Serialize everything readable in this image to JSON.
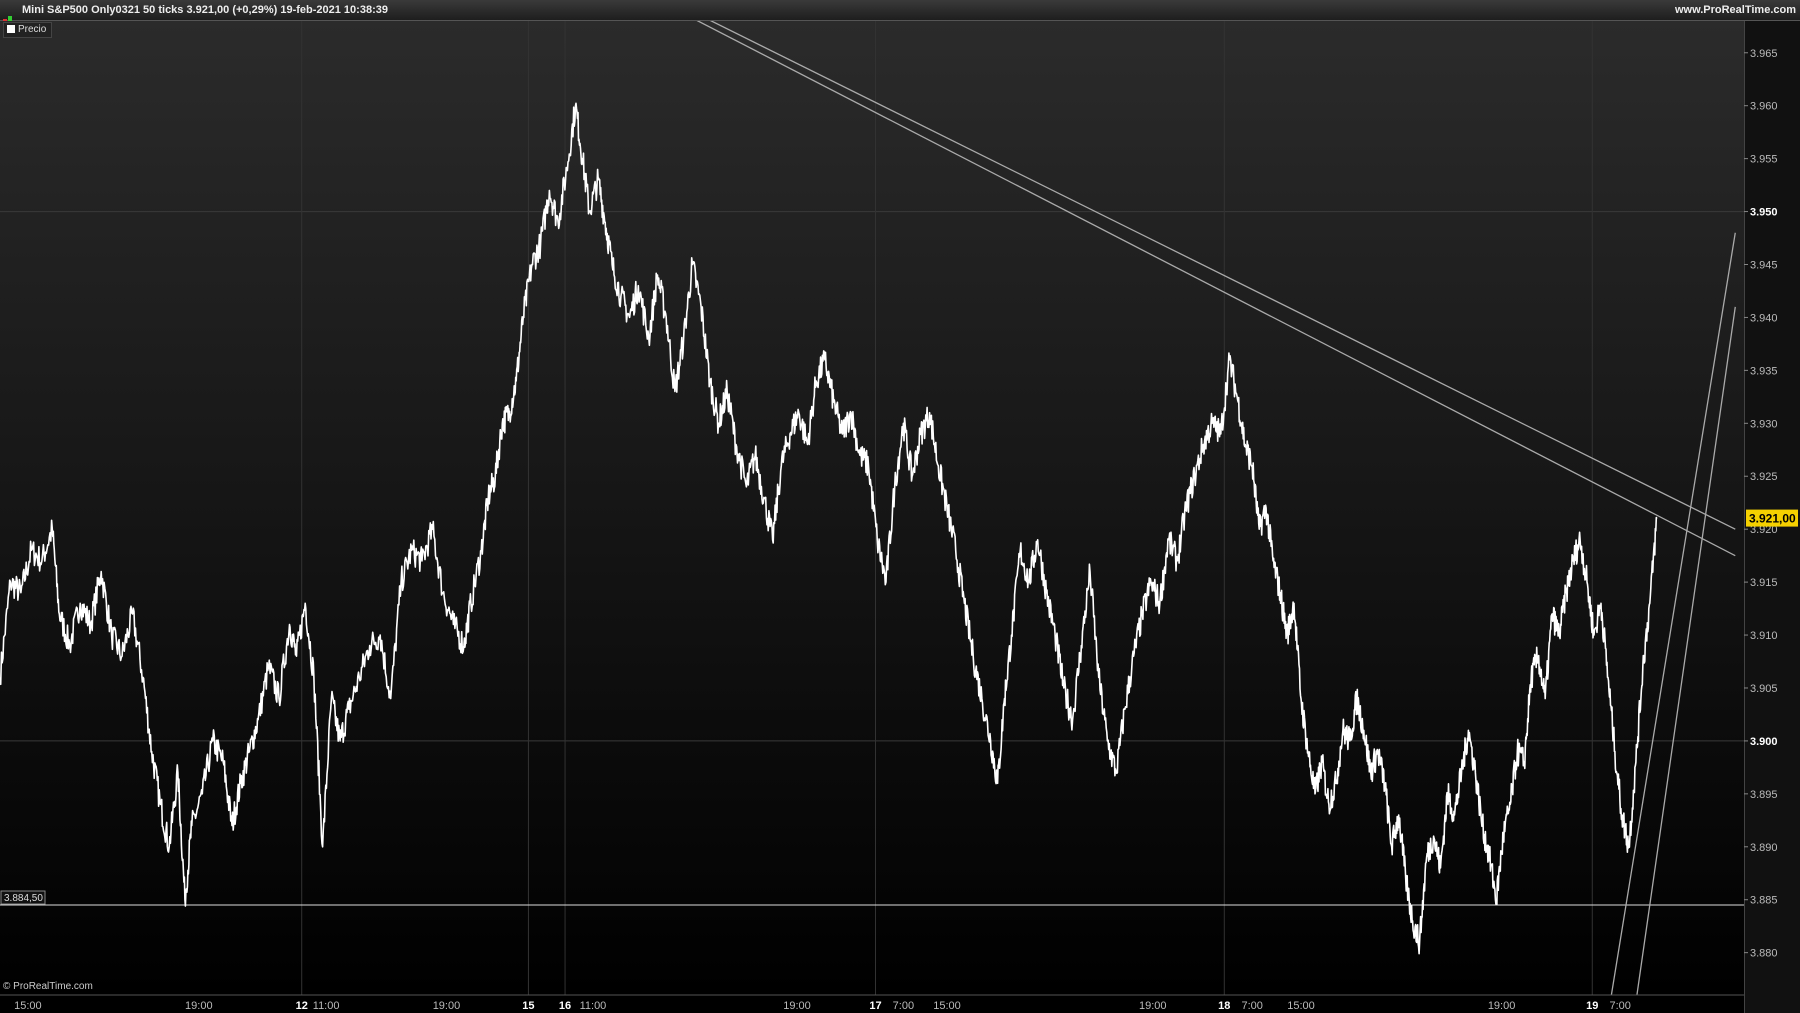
{
  "window": {
    "title": "Mini S&P500 Only0321 50 ticks 3.921,00 (+0,29%) 19-feb-2021 10:38:39",
    "site": "www.ProRealTime.com",
    "legend_label": "Precio",
    "copyright": "© ProRealTime.com"
  },
  "colors": {
    "background_top": "#2a2a2a",
    "background_bottom": "#000000",
    "price_line": "#ffffff",
    "current_price_badge": "#f5d000",
    "trendline": "#aaaaaa"
  },
  "chart_data": {
    "type": "line",
    "instrument": "Mini S&P500 Only0321",
    "current_price": "3.921,00",
    "horizontal_line_label": "3.884,50",
    "horizontal_line_value": 3884.5,
    "ylim": [
      3876,
      3968
    ],
    "y_ticks": [
      {
        "value": 3965,
        "label": "3.965",
        "bold": false
      },
      {
        "value": 3960,
        "label": "3.960",
        "bold": false
      },
      {
        "value": 3955,
        "label": "3.955",
        "bold": false
      },
      {
        "value": 3950,
        "label": "3.950",
        "bold": true
      },
      {
        "value": 3945,
        "label": "3.945",
        "bold": false
      },
      {
        "value": 3940,
        "label": "3.940",
        "bold": false
      },
      {
        "value": 3935,
        "label": "3.935",
        "bold": false
      },
      {
        "value": 3930,
        "label": "3.930",
        "bold": false
      },
      {
        "value": 3925,
        "label": "3.925",
        "bold": false
      },
      {
        "value": 3920,
        "label": "3.920",
        "bold": false
      },
      {
        "value": 3915,
        "label": "3.915",
        "bold": false
      },
      {
        "value": 3910,
        "label": "3.910",
        "bold": false
      },
      {
        "value": 3905,
        "label": "3.905",
        "bold": false
      },
      {
        "value": 3900,
        "label": "3.900",
        "bold": true
      },
      {
        "value": 3895,
        "label": "3.895",
        "bold": false
      },
      {
        "value": 3890,
        "label": "3.890",
        "bold": false
      },
      {
        "value": 3885,
        "label": "3.885",
        "bold": false
      },
      {
        "value": 3880,
        "label": "3.880",
        "bold": false
      }
    ],
    "x_range": [
      0,
      1000
    ],
    "x_ticks": [
      {
        "x": 16,
        "label": "15:00",
        "bold": false
      },
      {
        "x": 114,
        "label": "19:00",
        "bold": false
      },
      {
        "x": 173,
        "label": "12",
        "bold": true
      },
      {
        "x": 187,
        "label": "11:00",
        "bold": false
      },
      {
        "x": 256,
        "label": "19:00",
        "bold": false
      },
      {
        "x": 303,
        "label": "15",
        "bold": true
      },
      {
        "x": 324,
        "label": "16",
        "bold": true
      },
      {
        "x": 340,
        "label": "11:00",
        "bold": false
      },
      {
        "x": 457,
        "label": "19:00",
        "bold": false
      },
      {
        "x": 502,
        "label": "17",
        "bold": true
      },
      {
        "x": 518,
        "label": "7:00",
        "bold": false
      },
      {
        "x": 543,
        "label": "15:00",
        "bold": false
      },
      {
        "x": 661,
        "label": "19:00",
        "bold": false
      },
      {
        "x": 702,
        "label": "18",
        "bold": true
      },
      {
        "x": 718,
        "label": "7:00",
        "bold": false
      },
      {
        "x": 746,
        "label": "15:00",
        "bold": false
      },
      {
        "x": 861,
        "label": "19:00",
        "bold": false
      },
      {
        "x": 913,
        "label": "19",
        "bold": true
      },
      {
        "x": 929,
        "label": "7:00",
        "bold": false
      }
    ],
    "day_separators": [
      173,
      303,
      324,
      502,
      702,
      913
    ],
    "series": [
      {
        "points": [
          [
            0,
            3906
          ],
          [
            6,
            3915
          ],
          [
            12,
            3914
          ],
          [
            18,
            3918
          ],
          [
            24,
            3917
          ],
          [
            30,
            3920
          ],
          [
            34,
            3912
          ],
          [
            40,
            3909
          ],
          [
            46,
            3913
          ],
          [
            52,
            3911
          ],
          [
            58,
            3916
          ],
          [
            64,
            3910
          ],
          [
            70,
            3908
          ],
          [
            76,
            3912
          ],
          [
            82,
            3906
          ],
          [
            87,
            3899
          ],
          [
            92,
            3894
          ],
          [
            97,
            3890
          ],
          [
            102,
            3897
          ],
          [
            106,
            3885
          ],
          [
            110,
            3892
          ],
          [
            116,
            3895
          ],
          [
            122,
            3900
          ],
          [
            128,
            3898
          ],
          [
            133,
            3892
          ],
          [
            138,
            3896
          ],
          [
            143,
            3899
          ],
          [
            148,
            3902
          ],
          [
            154,
            3907
          ],
          [
            160,
            3904
          ],
          [
            166,
            3911
          ],
          [
            170,
            3908
          ],
          [
            175,
            3913
          ],
          [
            180,
            3906
          ],
          [
            185,
            3890
          ],
          [
            190,
            3904
          ],
          [
            195,
            3900
          ],
          [
            200,
            3903
          ],
          [
            206,
            3906
          ],
          [
            212,
            3909
          ],
          [
            218,
            3910
          ],
          [
            224,
            3904
          ],
          [
            230,
            3915
          ],
          [
            236,
            3918
          ],
          [
            242,
            3917
          ],
          [
            248,
            3920
          ],
          [
            254,
            3914
          ],
          [
            260,
            3911
          ],
          [
            266,
            3909
          ],
          [
            270,
            3913
          ],
          [
            276,
            3918
          ],
          [
            280,
            3923
          ],
          [
            284,
            3925
          ],
          [
            288,
            3930
          ],
          [
            292,
            3931
          ],
          [
            296,
            3934
          ],
          [
            300,
            3940
          ],
          [
            305,
            3945
          ],
          [
            310,
            3947
          ],
          [
            315,
            3952
          ],
          [
            320,
            3949
          ],
          [
            325,
            3954
          ],
          [
            330,
            3960
          ],
          [
            334,
            3955
          ],
          [
            338,
            3950
          ],
          [
            343,
            3953
          ],
          [
            347,
            3949
          ],
          [
            351,
            3945
          ],
          [
            356,
            3942
          ],
          [
            361,
            3940
          ],
          [
            366,
            3943
          ],
          [
            372,
            3938
          ],
          [
            377,
            3944
          ],
          [
            382,
            3940
          ],
          [
            387,
            3933
          ],
          [
            392,
            3938
          ],
          [
            397,
            3945
          ],
          [
            402,
            3941
          ],
          [
            407,
            3934
          ],
          [
            412,
            3930
          ],
          [
            417,
            3933
          ],
          [
            422,
            3928
          ],
          [
            428,
            3924
          ],
          [
            433,
            3927
          ],
          [
            438,
            3923
          ],
          [
            443,
            3919
          ],
          [
            448,
            3926
          ],
          [
            453,
            3929
          ],
          [
            458,
            3931
          ],
          [
            463,
            3928
          ],
          [
            468,
            3934
          ],
          [
            473,
            3936
          ],
          [
            478,
            3932
          ],
          [
            483,
            3929
          ],
          [
            488,
            3931
          ],
          [
            493,
            3927
          ],
          [
            498,
            3926
          ],
          [
            503,
            3919
          ],
          [
            508,
            3915
          ],
          [
            513,
            3924
          ],
          [
            518,
            3930
          ],
          [
            523,
            3925
          ],
          [
            528,
            3929
          ],
          [
            533,
            3931
          ],
          [
            538,
            3926
          ],
          [
            543,
            3922
          ],
          [
            548,
            3918
          ],
          [
            553,
            3913
          ],
          [
            558,
            3908
          ],
          [
            563,
            3904
          ],
          [
            568,
            3900
          ],
          [
            572,
            3896
          ],
          [
            576,
            3904
          ],
          [
            580,
            3910
          ],
          [
            585,
            3918
          ],
          [
            590,
            3915
          ],
          [
            595,
            3919
          ],
          [
            600,
            3914
          ],
          [
            605,
            3910
          ],
          [
            610,
            3905
          ],
          [
            615,
            3902
          ],
          [
            620,
            3909
          ],
          [
            625,
            3916
          ],
          [
            630,
            3906
          ],
          [
            635,
            3900
          ],
          [
            640,
            3897
          ],
          [
            645,
            3903
          ],
          [
            650,
            3908
          ],
          [
            655,
            3912
          ],
          [
            660,
            3915
          ],
          [
            665,
            3913
          ],
          [
            670,
            3919
          ],
          [
            675,
            3917
          ],
          [
            680,
            3922
          ],
          [
            685,
            3925
          ],
          [
            690,
            3928
          ],
          [
            695,
            3930
          ],
          [
            700,
            3929
          ],
          [
            705,
            3936
          ],
          [
            710,
            3932
          ],
          [
            714,
            3928
          ],
          [
            718,
            3926
          ],
          [
            722,
            3920
          ],
          [
            726,
            3922
          ],
          [
            730,
            3917
          ],
          [
            734,
            3914
          ],
          [
            738,
            3910
          ],
          [
            742,
            3913
          ],
          [
            746,
            3904
          ],
          [
            750,
            3899
          ],
          [
            754,
            3895
          ],
          [
            758,
            3898
          ],
          [
            762,
            3894
          ],
          [
            766,
            3896
          ],
          [
            770,
            3901
          ],
          [
            774,
            3900
          ],
          [
            778,
            3904
          ],
          [
            782,
            3901
          ],
          [
            786,
            3897
          ],
          [
            790,
            3899
          ],
          [
            794,
            3896
          ],
          [
            798,
            3890
          ],
          [
            802,
            3893
          ],
          [
            806,
            3887
          ],
          [
            810,
            3883
          ],
          [
            814,
            3881
          ],
          [
            818,
            3889
          ],
          [
            822,
            3891
          ],
          [
            826,
            3888
          ],
          [
            830,
            3895
          ],
          [
            834,
            3893
          ],
          [
            838,
            3897
          ],
          [
            842,
            3901
          ],
          [
            846,
            3897
          ],
          [
            850,
            3892
          ],
          [
            854,
            3889
          ],
          [
            858,
            3885
          ],
          [
            862,
            3891
          ],
          [
            866,
            3894
          ],
          [
            870,
            3899
          ],
          [
            874,
            3898
          ],
          [
            878,
            3906
          ],
          [
            882,
            3908
          ],
          [
            886,
            3904
          ],
          [
            890,
            3912
          ],
          [
            894,
            3910
          ],
          [
            898,
            3914
          ],
          [
            902,
            3917
          ],
          [
            906,
            3919
          ],
          [
            910,
            3915
          ],
          [
            914,
            3910
          ],
          [
            918,
            3913
          ],
          [
            922,
            3906
          ],
          [
            926,
            3899
          ],
          [
            930,
            3893
          ],
          [
            934,
            3890
          ],
          [
            938,
            3898
          ],
          [
            942,
            3907
          ],
          [
            946,
            3913
          ],
          [
            950,
            3921
          ]
        ]
      }
    ],
    "trendlines": [
      {
        "points": [
          [
            200,
            3985
          ],
          [
            995,
            3920
          ]
        ]
      },
      {
        "points": [
          [
            200,
            3985
          ],
          [
            995,
            3917.5
          ]
        ]
      },
      {
        "points": [
          [
            921,
            3873
          ],
          [
            995,
            3948
          ]
        ]
      },
      {
        "points": [
          [
            936,
            3873
          ],
          [
            995,
            3941
          ]
        ]
      }
    ]
  }
}
